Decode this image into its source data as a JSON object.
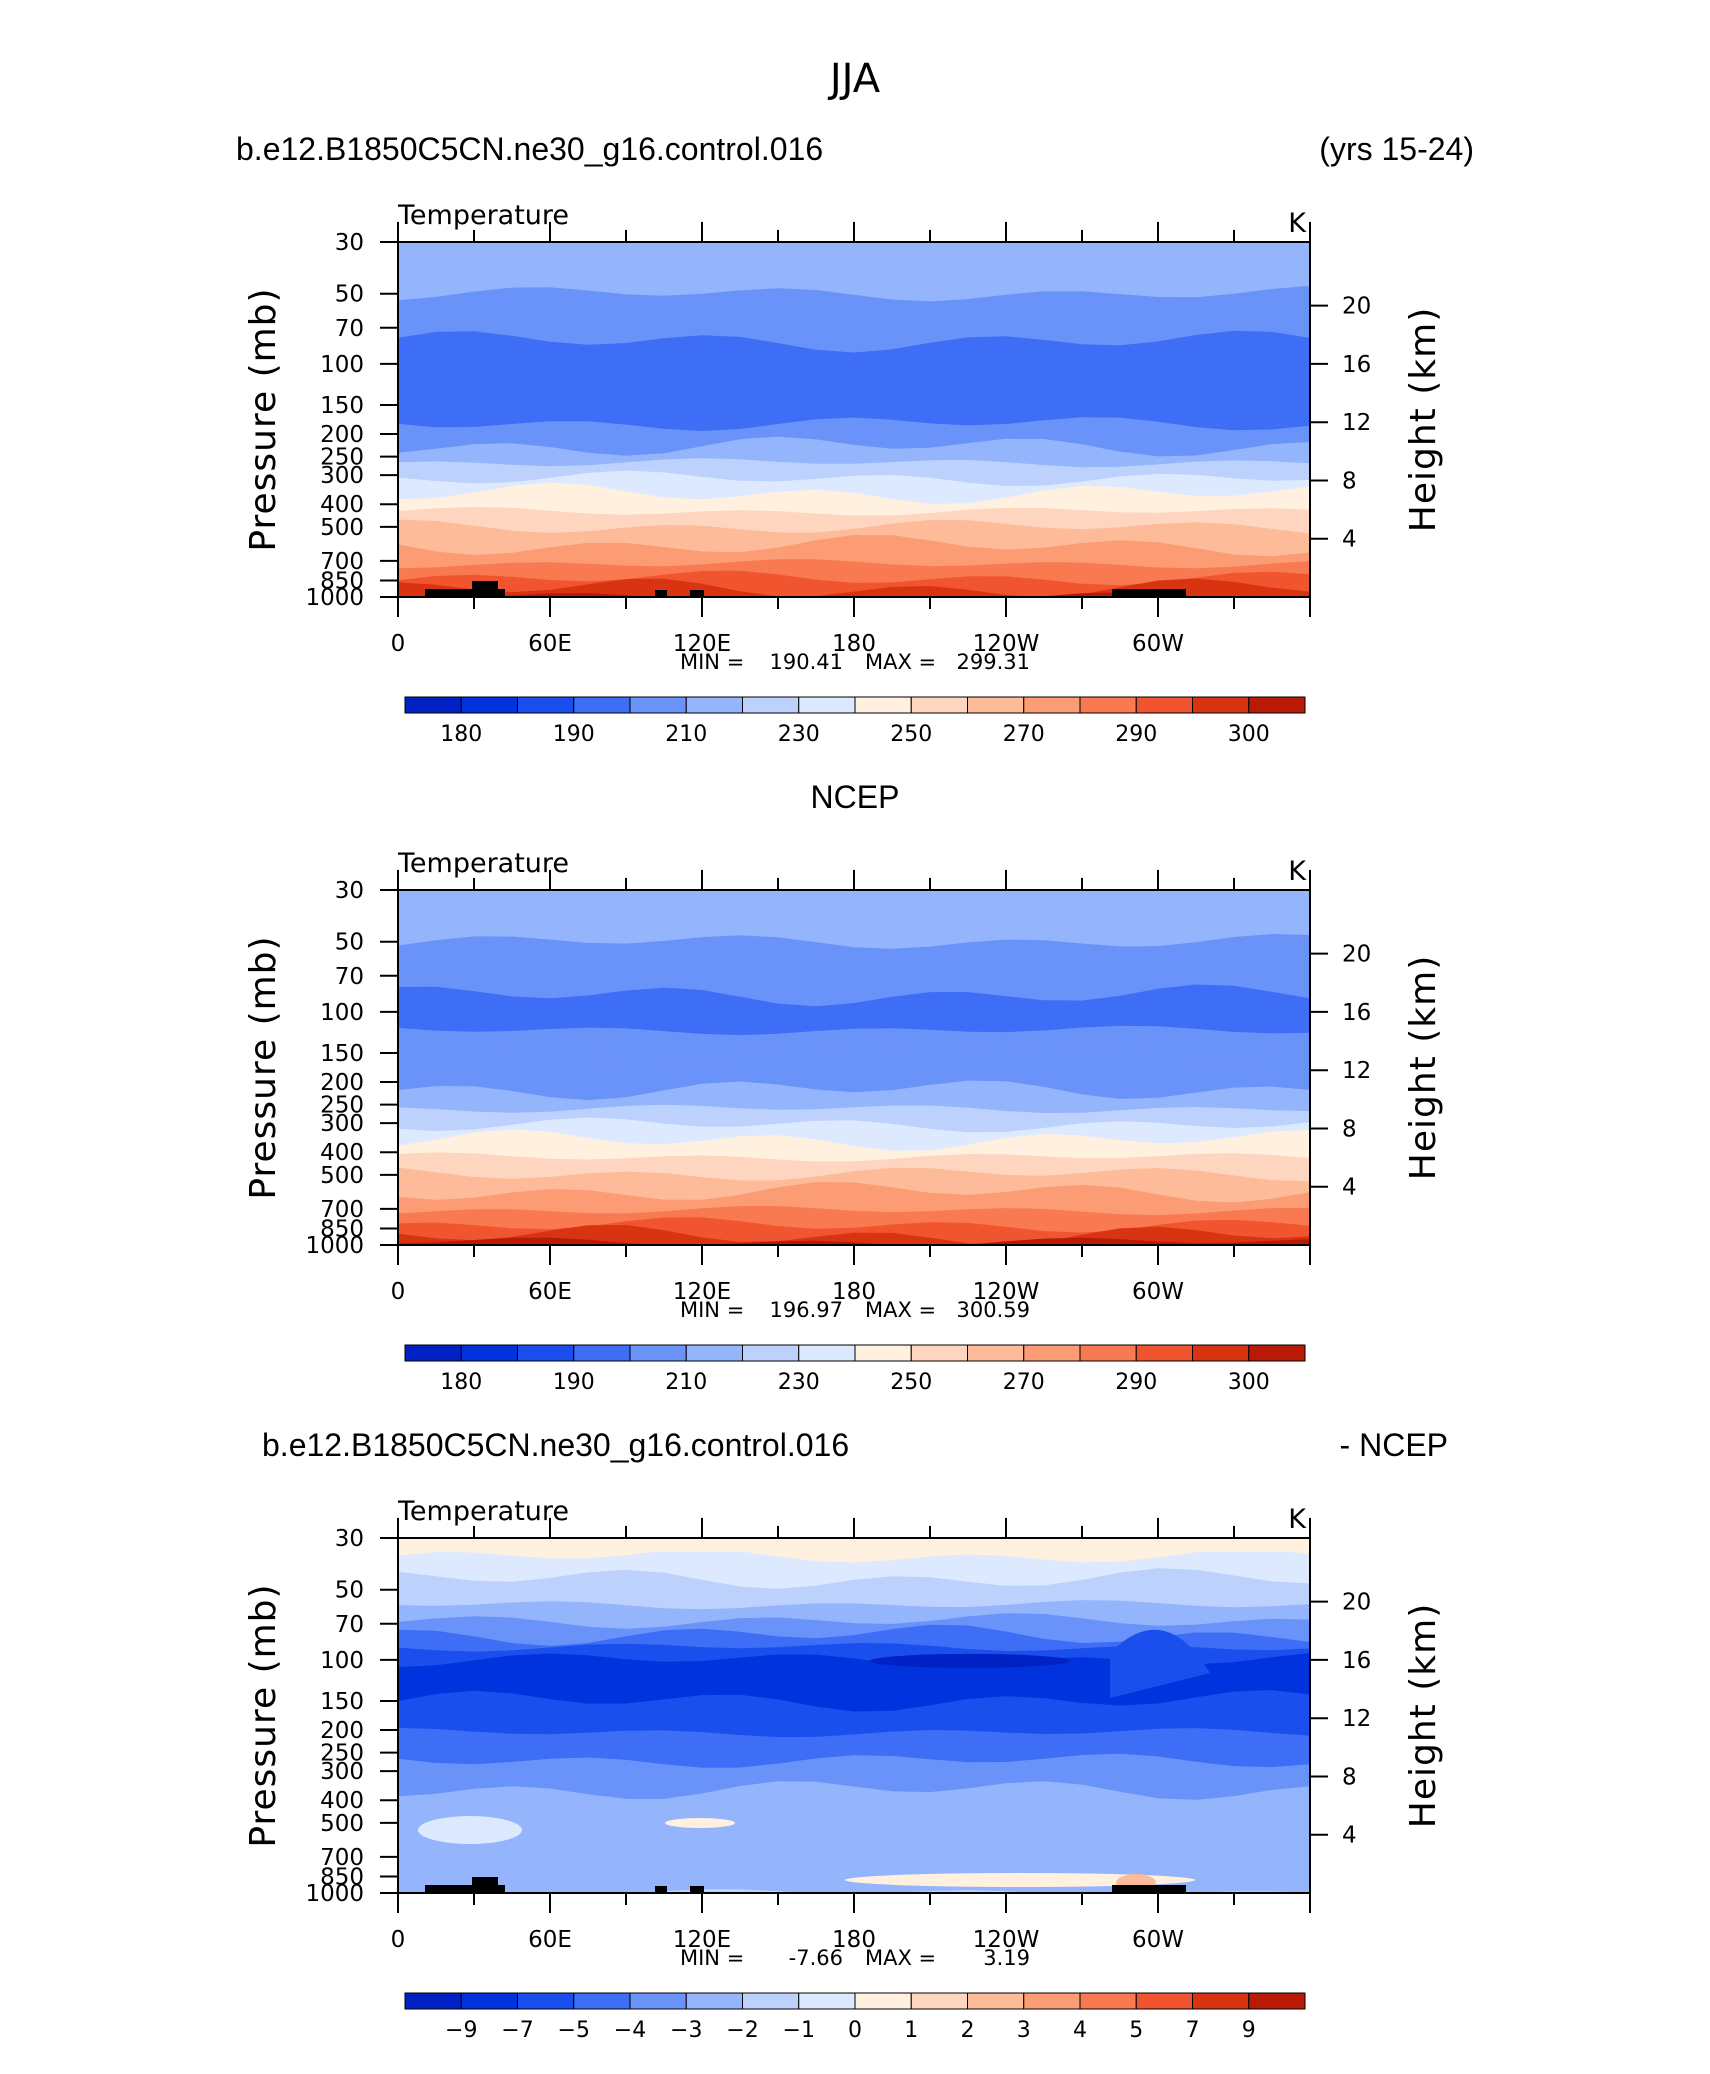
{
  "figure": {
    "title": "JJA",
    "colors": {
      "abs_palette": [
        "#00008b",
        "#0022c4",
        "#0033dd",
        "#1a4fee",
        "#3d6ef5",
        "#6a93fa",
        "#94b4fc",
        "#bcd2fd",
        "#dde9fe",
        "#fff0e0",
        "#fed6bf",
        "#fdbb9a",
        "#fc9c74",
        "#f97a50",
        "#f05530",
        "#d93412",
        "#b81a06",
        "#8b0000"
      ],
      "diff_palette": [
        "#00008b",
        "#0022c4",
        "#0033dd",
        "#1a4fee",
        "#3d6ef5",
        "#6a93fa",
        "#94b4fc",
        "#bcd2fd",
        "#dde9fe",
        "#fff0e0",
        "#fed6bf",
        "#fdbb9a",
        "#fc9c74",
        "#f97a50",
        "#f05530",
        "#d93412",
        "#b81a06",
        "#8b0000"
      ],
      "land": "#000000"
    }
  },
  "chart_data": [
    {
      "type": "heatmap",
      "panel": "model",
      "header_left": "b.e12.B1850C5CN.ne30_g16.control.016",
      "header_right": "(yrs 15-24)",
      "title": "Temperature",
      "units": "K",
      "xlabel": "",
      "ylabel": "Pressure (mb)",
      "ylabel_right": "Height (km)",
      "x_ticks": [
        "0",
        "60E",
        "120E",
        "180",
        "120W",
        "60W"
      ],
      "y_ticks": [
        "30",
        "50",
        "70",
        "100",
        "150",
        "200",
        "250",
        "300",
        "400",
        "500",
        "700",
        "850",
        "1000"
      ],
      "y_right_ticks": [
        "20",
        "16",
        "12",
        "8",
        "4"
      ],
      "stats": {
        "min_label": "MIN =",
        "min": "190.41",
        "max_label": "MAX =",
        "max": "299.31"
      },
      "levels": [
        175,
        180,
        185,
        190,
        200,
        210,
        220,
        230,
        240,
        250,
        260,
        270,
        280,
        285,
        290,
        295,
        300,
        305
      ],
      "colorbar_labels": [
        "180",
        "190",
        "210",
        "230",
        "250",
        "270",
        "290",
        "300"
      ],
      "layers": [
        {
          "p": 30,
          "ci": 6
        },
        {
          "p": 50,
          "ci": 5
        },
        {
          "p": 80,
          "ci": 4
        },
        {
          "p": 145,
          "ci": 4
        },
        {
          "p": 180,
          "ci": 5
        },
        {
          "p": 225,
          "ci": 6
        },
        {
          "p": 265,
          "ci": 7
        },
        {
          "p": 310,
          "ci": 8
        },
        {
          "p": 360,
          "ci": 9
        },
        {
          "p": 430,
          "ci": 10
        },
        {
          "p": 500,
          "ci": 11
        },
        {
          "p": 600,
          "ci": 12
        },
        {
          "p": 720,
          "ci": 13
        },
        {
          "p": 830,
          "ci": 14
        },
        {
          "p": 920,
          "ci": 15
        },
        {
          "p": 1000,
          "ci": 16
        }
      ],
      "land": true
    },
    {
      "type": "heatmap",
      "panel": "obs",
      "header_center": "NCEP",
      "title": "Temperature",
      "units": "K",
      "xlabel": "",
      "ylabel": "Pressure (mb)",
      "ylabel_right": "Height (km)",
      "x_ticks": [
        "0",
        "60E",
        "120E",
        "180",
        "120W",
        "60W"
      ],
      "y_ticks": [
        "30",
        "50",
        "70",
        "100",
        "150",
        "200",
        "250",
        "300",
        "400",
        "500",
        "700",
        "850",
        "1000"
      ],
      "y_right_ticks": [
        "20",
        "16",
        "12",
        "8",
        "4"
      ],
      "stats": {
        "min_label": "MIN =",
        "min": "196.97",
        "max_label": "MAX =",
        "max": "300.59"
      },
      "levels": [
        175,
        180,
        185,
        190,
        200,
        210,
        220,
        230,
        240,
        250,
        260,
        270,
        280,
        285,
        290,
        295,
        300,
        305
      ],
      "colorbar_labels": [
        "180",
        "190",
        "210",
        "230",
        "250",
        "270",
        "290",
        "300"
      ],
      "layers": [
        {
          "p": 30,
          "ci": 6
        },
        {
          "p": 50,
          "ci": 5
        },
        {
          "p": 85,
          "ci": 4
        },
        {
          "p": 120,
          "ci": 5
        },
        {
          "p": 150,
          "ci": 5
        },
        {
          "p": 215,
          "ci": 6
        },
        {
          "p": 260,
          "ci": 7
        },
        {
          "p": 305,
          "ci": 8
        },
        {
          "p": 355,
          "ci": 9
        },
        {
          "p": 420,
          "ci": 10
        },
        {
          "p": 495,
          "ci": 11
        },
        {
          "p": 590,
          "ci": 12
        },
        {
          "p": 710,
          "ci": 13
        },
        {
          "p": 820,
          "ci": 14
        },
        {
          "p": 910,
          "ci": 15
        },
        {
          "p": 970,
          "ci": 16
        }
      ],
      "land": false
    },
    {
      "type": "heatmap",
      "panel": "difference",
      "header_left": "b.e12.B1850C5CN.ne30_g16.control.016",
      "header_right": "- NCEP",
      "title": "Temperature",
      "units": "K",
      "xlabel": "",
      "ylabel": "Pressure (mb)",
      "ylabel_right": "Height (km)",
      "x_ticks": [
        "0",
        "60E",
        "120E",
        "180",
        "120W",
        "60W"
      ],
      "y_ticks": [
        "30",
        "50",
        "70",
        "100",
        "150",
        "200",
        "250",
        "300",
        "400",
        "500",
        "700",
        "850",
        "1000"
      ],
      "y_right_ticks": [
        "20",
        "16",
        "12",
        "8",
        "4"
      ],
      "stats": {
        "min_label": "MIN =",
        "min": "-7.66",
        "max_label": "MAX =",
        "max": "3.19"
      },
      "levels": [
        -10,
        -9,
        -8,
        -7,
        -6,
        -5,
        -4,
        -3,
        -2,
        -1,
        0,
        1,
        2,
        3,
        4,
        5,
        7,
        9
      ],
      "colorbar_labels": [
        "−9",
        "−7",
        "−5",
        "−4",
        "−3",
        "−2",
        "−1",
        "0",
        "1",
        "2",
        "3",
        "4",
        "5",
        "7",
        "9"
      ],
      "layers": [
        {
          "p": 30,
          "ci": 9
        },
        {
          "p": 36,
          "ci": 8
        },
        {
          "p": 45,
          "ci": 7
        },
        {
          "p": 58,
          "ci": 6
        },
        {
          "p": 68,
          "ci": 5
        },
        {
          "p": 78,
          "ci": 4
        },
        {
          "p": 88,
          "ci": 3
        },
        {
          "p": 100,
          "ci": 2
        },
        {
          "p": 150,
          "ci": 3
        },
        {
          "p": 205,
          "ci": 4
        },
        {
          "p": 270,
          "ci": 5
        },
        {
          "p": 360,
          "ci": 6
        },
        {
          "p": 1000,
          "ci": 7
        }
      ],
      "land": true
    }
  ]
}
